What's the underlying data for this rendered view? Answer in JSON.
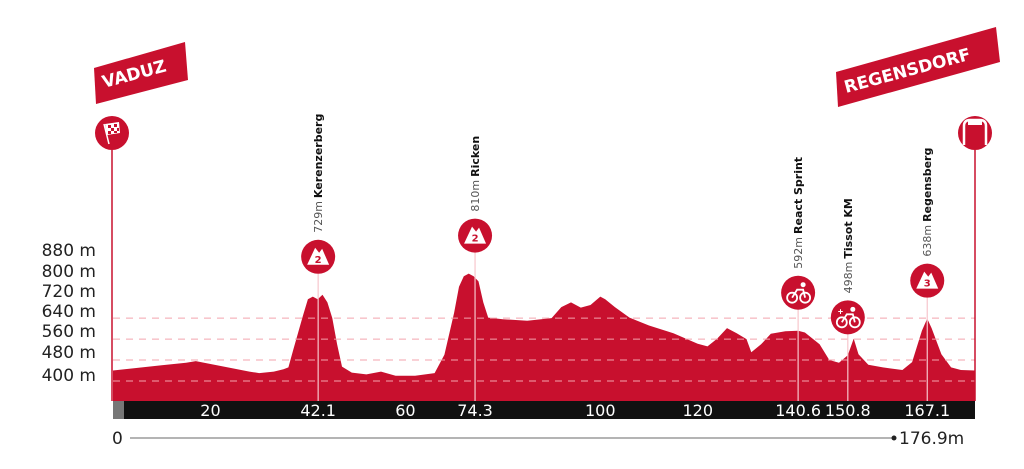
{
  "chart_data": {
    "type": "area",
    "title": "",
    "start": "VADUZ",
    "finish": "REGENSDORF",
    "x_unit": "km",
    "xlim": [
      0,
      176.9
    ],
    "ylim": [
      400,
      880
    ],
    "y_ticks": [
      "880 m",
      "800 m",
      "720 m",
      "640 m",
      "560 m",
      "480 m",
      "400 m"
    ],
    "y_tick_values": [
      880,
      800,
      720,
      640,
      560,
      480,
      400
    ],
    "x_ticks": [
      {
        "km": 20,
        "label": "20"
      },
      {
        "km": 42.1,
        "label": "42.1"
      },
      {
        "km": 60,
        "label": "60"
      },
      {
        "km": 74.3,
        "label": "74.3"
      },
      {
        "km": 100,
        "label": "100"
      },
      {
        "km": 120,
        "label": "120"
      },
      {
        "km": 140.6,
        "label": "140.6"
      },
      {
        "km": 150.8,
        "label": "150.8"
      },
      {
        "km": 167.1,
        "label": "167.1"
      }
    ],
    "distance_start": "0",
    "distance_end": "176.9m",
    "colors": {
      "profile": "#c8102e",
      "bar": "#111111",
      "banner": "#c8102e"
    },
    "grid": "dashed horizontal",
    "profile": [
      [
        0,
        440
      ],
      [
        5,
        450
      ],
      [
        10,
        460
      ],
      [
        15,
        470
      ],
      [
        17,
        476
      ],
      [
        20,
        465
      ],
      [
        25,
        447
      ],
      [
        28,
        436
      ],
      [
        30,
        430
      ],
      [
        33,
        436
      ],
      [
        35,
        445
      ],
      [
        36,
        452
      ],
      [
        37,
        520
      ],
      [
        39,
        650
      ],
      [
        40,
        712
      ],
      [
        41,
        722
      ],
      [
        42,
        712
      ],
      [
        43,
        729
      ],
      [
        44,
        700
      ],
      [
        45,
        640
      ],
      [
        46,
        540
      ],
      [
        47,
        455
      ],
      [
        49,
        432
      ],
      [
        52,
        425
      ],
      [
        55,
        436
      ],
      [
        58,
        420
      ],
      [
        62,
        420
      ],
      [
        66,
        430
      ],
      [
        68,
        500
      ],
      [
        70,
        660
      ],
      [
        71,
        760
      ],
      [
        72,
        800
      ],
      [
        73,
        810
      ],
      [
        74,
        800
      ],
      [
        75,
        780
      ],
      [
        76,
        700
      ],
      [
        77,
        642
      ],
      [
        80,
        636
      ],
      [
        85,
        630
      ],
      [
        90,
        640
      ],
      [
        92,
        682
      ],
      [
        94,
        700
      ],
      [
        96,
        680
      ],
      [
        98,
        690
      ],
      [
        100,
        722
      ],
      [
        101,
        712
      ],
      [
        103,
        682
      ],
      [
        106,
        642
      ],
      [
        110,
        612
      ],
      [
        115,
        582
      ],
      [
        120,
        542
      ],
      [
        122,
        532
      ],
      [
        124,
        562
      ],
      [
        126,
        602
      ],
      [
        128,
        582
      ],
      [
        130,
        560
      ],
      [
        131,
        510
      ],
      [
        133,
        540
      ],
      [
        135,
        580
      ],
      [
        138,
        590
      ],
      [
        140.6,
        592
      ],
      [
        142,
        585
      ],
      [
        145,
        540
      ],
      [
        147,
        480
      ],
      [
        149,
        470
      ],
      [
        150.8,
        498
      ],
      [
        152,
        562
      ],
      [
        153,
        502
      ],
      [
        155,
        462
      ],
      [
        158,
        452
      ],
      [
        162,
        442
      ],
      [
        164,
        472
      ],
      [
        166,
        592
      ],
      [
        167.1,
        638
      ],
      [
        168,
        602
      ],
      [
        170,
        502
      ],
      [
        172,
        452
      ],
      [
        174,
        442
      ],
      [
        176.9,
        440
      ]
    ],
    "markers": [
      {
        "km": 42.1,
        "altitude": "729m",
        "name": "Kerenzerberg",
        "type": "climb",
        "category": "2"
      },
      {
        "km": 74.3,
        "altitude": "810m",
        "name": "Ricken",
        "type": "climb",
        "category": "2"
      },
      {
        "km": 140.6,
        "altitude": "592m",
        "name": "React Sprint",
        "type": "sprint"
      },
      {
        "km": 150.8,
        "altitude": "498m",
        "name": "Tissot KM",
        "type": "bonus-sprint"
      },
      {
        "km": 167.1,
        "altitude": "638m",
        "name": "Regensberg",
        "type": "climb",
        "category": "3"
      }
    ]
  }
}
